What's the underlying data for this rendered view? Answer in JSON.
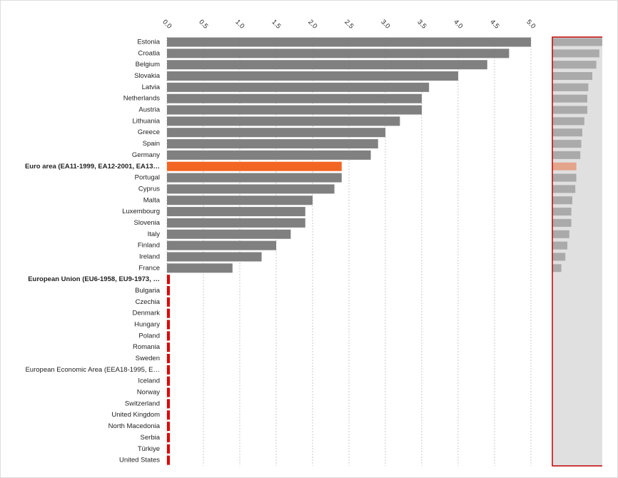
{
  "chart_data": {
    "type": "bar",
    "orientation": "horizontal",
    "categories": [
      "Estonia",
      "Croatia",
      "Belgium",
      "Slovakia",
      "Latvia",
      "Netherlands",
      "Austria",
      "Lithuania",
      "Greece",
      "Spain",
      "Germany",
      "Euro area (EA11-1999, EA12-2001, EA13…",
      "Portugal",
      "Cyprus",
      "Malta",
      "Luxembourg",
      "Slovenia",
      "Italy",
      "Finland",
      "Ireland",
      "France",
      "European Union (EU6-1958, EU9-1973, …",
      "Bulgaria",
      "Czechia",
      "Denmark",
      "Hungary",
      "Poland",
      "Romania",
      "Sweden",
      "European Economic Area (EEA18-1995, E…",
      "Iceland",
      "Norway",
      "Switzerland",
      "United Kingdom",
      "North Macedonia",
      "Serbia",
      "Türkiye",
      "United States"
    ],
    "values": [
      5.0,
      4.7,
      4.4,
      4.0,
      3.6,
      3.5,
      3.5,
      3.2,
      3.0,
      2.9,
      2.8,
      2.4,
      2.4,
      2.3,
      2.0,
      1.9,
      1.9,
      1.7,
      1.5,
      1.3,
      0.9,
      null,
      null,
      null,
      null,
      null,
      null,
      null,
      null,
      null,
      null,
      null,
      null,
      null,
      null,
      null,
      null,
      null
    ],
    "color": "#808080",
    "highlight_color": "#f26522",
    "highlight": [
      11
    ],
    "bold": [
      11,
      21
    ],
    "missing_color": "#e00000",
    "overview_color": "#aaaaaa",
    "overview_highlight_color": "#e4a48c",
    "xlim": [
      0,
      5
    ],
    "xticks": [
      {
        "value": 0,
        "label": "0.0"
      },
      {
        "value": 0.5,
        "label": "0.5"
      },
      {
        "value": 1,
        "label": "1.0"
      },
      {
        "value": 1.5,
        "label": "1.5"
      },
      {
        "value": 2,
        "label": "2.0"
      },
      {
        "value": 2.5,
        "label": "2.5"
      },
      {
        "value": 3,
        "label": "3.0"
      },
      {
        "value": 3.5,
        "label": "3.5"
      },
      {
        "value": 4,
        "label": "4.0"
      },
      {
        "value": 4.5,
        "label": "4.5"
      },
      {
        "value": 5,
        "label": "5.0"
      }
    ],
    "grid": true
  }
}
